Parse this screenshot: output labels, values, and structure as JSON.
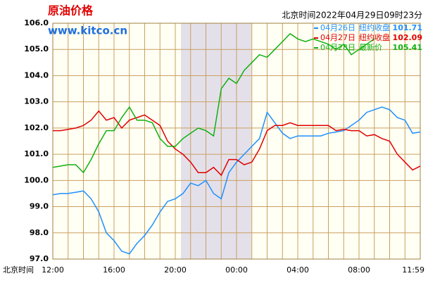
{
  "chart_data": {
    "type": "line",
    "title": "原油价格",
    "subtitle": "www.kitco.cn",
    "timestamp": "北京时间2022年04月29日09时23分",
    "x_label": "北京时间",
    "categories": [
      "12:00",
      null,
      null,
      null,
      null,
      null,
      null,
      null,
      "16:00",
      null,
      null,
      null,
      null,
      null,
      null,
      null,
      "20:00",
      null,
      null,
      null,
      null,
      null,
      null,
      null,
      "00:00",
      null,
      null,
      null,
      null,
      null,
      null,
      null,
      "04:00",
      null,
      null,
      null,
      null,
      null,
      null,
      null,
      "08:00",
      null,
      null,
      null,
      null,
      null,
      null,
      null,
      "11:59"
    ],
    "ylim": [
      97,
      106
    ],
    "yticks": [
      {
        "value": 97,
        "label": "97.0"
      },
      {
        "value": 98,
        "label": "98.0"
      },
      {
        "value": 99,
        "label": "99.0"
      },
      {
        "value": 100,
        "label": "100.0"
      },
      {
        "value": 101,
        "label": "101.0"
      },
      {
        "value": 102,
        "label": "102.0"
      },
      {
        "value": 103,
        "label": "103.0"
      },
      {
        "value": 104,
        "label": "104.0"
      },
      {
        "value": 105,
        "label": "105.0"
      },
      {
        "value": 106,
        "label": "106.0"
      }
    ],
    "grid": true,
    "legend": "upper right",
    "series": [
      {
        "name": "04月26日",
        "legend_label": "纽约收盘",
        "legend_value": 101.71,
        "color": "#1e90ff",
        "values": [
          99.45,
          99.5,
          99.5,
          99.55,
          99.6,
          99.3,
          98.8,
          98.0,
          97.7,
          97.3,
          97.2,
          97.6,
          97.9,
          98.3,
          98.8,
          99.2,
          99.3,
          99.5,
          99.9,
          99.8,
          100.0,
          99.5,
          99.3,
          100.3,
          100.7,
          101.0,
          101.3,
          101.6,
          102.6,
          102.2,
          101.8,
          101.6,
          101.7,
          101.7,
          101.7,
          101.7,
          101.8,
          101.85,
          101.9,
          102.1,
          102.3,
          102.6,
          102.7,
          102.8,
          102.7,
          102.4,
          102.3,
          101.8,
          101.85
        ]
      },
      {
        "name": "04月27日",
        "legend_label": "纽约收盘",
        "legend_value": 102.09,
        "color": "#e00000",
        "values": [
          101.9,
          101.9,
          101.95,
          102.0,
          102.1,
          102.3,
          102.65,
          102.3,
          102.4,
          102.0,
          102.3,
          102.4,
          102.5,
          102.3,
          102.1,
          101.5,
          101.2,
          101.0,
          100.7,
          100.3,
          100.3,
          100.5,
          100.2,
          100.8,
          100.8,
          100.6,
          100.7,
          101.2,
          101.9,
          102.1,
          102.1,
          102.2,
          102.1,
          102.1,
          102.1,
          102.1,
          102.1,
          101.9,
          101.95,
          101.9,
          101.9,
          101.7,
          101.75,
          101.6,
          101.5,
          101.0,
          100.7,
          100.4,
          100.55
        ]
      },
      {
        "name": "04月28日",
        "legend_label": "最新价",
        "legend_value": 105.41,
        "color": "#10b010",
        "values": [
          100.5,
          100.55,
          100.6,
          100.6,
          100.3,
          100.8,
          101.4,
          101.9,
          101.9,
          102.4,
          102.8,
          102.3,
          102.3,
          102.2,
          101.6,
          101.3,
          101.3,
          101.6,
          101.8,
          102.0,
          101.9,
          101.7,
          103.5,
          103.9,
          103.7,
          104.2,
          104.5,
          104.8,
          104.7,
          105.0,
          105.3,
          105.6,
          105.4,
          105.3,
          105.4,
          105.3,
          105.2,
          105.0,
          105.2,
          104.8,
          105.0,
          105.2,
          105.41,
          null,
          null,
          null,
          null,
          null,
          null
        ]
      }
    ]
  }
}
